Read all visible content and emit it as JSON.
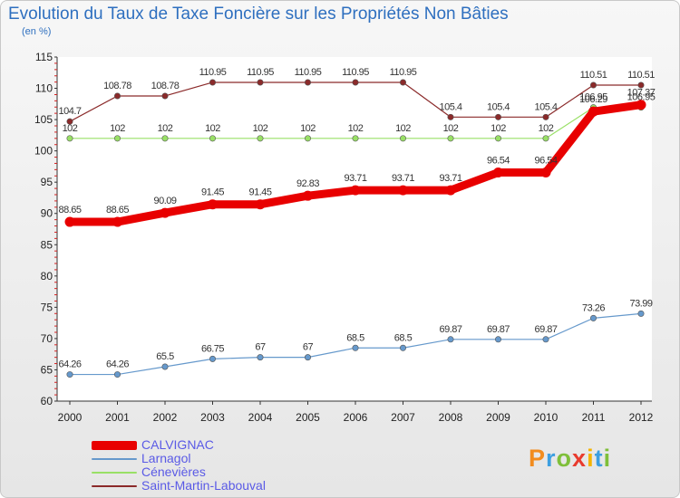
{
  "chart_data": {
    "type": "line",
    "title": "Evolution du Taux de Taxe Foncière sur les Propriétés Non Bâties",
    "subtitle": "(en %)",
    "x": [
      "2000",
      "2001",
      "2002",
      "2003",
      "2004",
      "2005",
      "2006",
      "2007",
      "2008",
      "2009",
      "2010",
      "2011",
      "2012"
    ],
    "ylim": [
      60,
      115
    ],
    "yticks": [
      60,
      65,
      70,
      75,
      80,
      85,
      90,
      95,
      100,
      105,
      110,
      115
    ],
    "grid": false,
    "legend_position": "bottom-left",
    "series": [
      {
        "name": "CALVIGNAC",
        "color": "#e80000",
        "values": [
          88.65,
          88.65,
          90.09,
          91.45,
          91.45,
          92.83,
          93.71,
          93.71,
          93.71,
          96.54,
          96.54,
          106.29,
          107.37
        ],
        "labels": [
          "88.65",
          "88.65",
          "90.09",
          "91.45",
          "91.45",
          "92.83",
          "93.71",
          "93.71",
          "93.71",
          "96.54",
          "96.54",
          "106.29",
          "107.37"
        ]
      },
      {
        "name": "Larnagol",
        "color": "#6699cc",
        "values": [
          64.26,
          64.26,
          65.5,
          66.75,
          67,
          67,
          68.5,
          68.5,
          69.87,
          69.87,
          69.87,
          73.26,
          73.99
        ],
        "labels": [
          "64.26",
          "64.26",
          "65.5",
          "66.75",
          "67",
          "67",
          "68.5",
          "68.5",
          "69.87",
          "69.87",
          "69.87",
          "73.26",
          "73.99"
        ]
      },
      {
        "name": "Cénevières",
        "color": "#99e066",
        "values": [
          102,
          102,
          102,
          102,
          102,
          102,
          102,
          102,
          102,
          102,
          102,
          106.95,
          106.95
        ],
        "labels": [
          "102",
          "102",
          "102",
          "102",
          "102",
          "102",
          "102",
          "102",
          "102",
          "102",
          "102",
          "106.95",
          "106.95"
        ]
      },
      {
        "name": "Saint-Martin-Labouval",
        "color": "#8b2a2a",
        "values": [
          104.7,
          108.78,
          108.78,
          110.95,
          110.95,
          110.95,
          110.95,
          110.95,
          105.4,
          105.4,
          105.4,
          110.51,
          110.51
        ],
        "labels": [
          "104.7",
          "108.78",
          "108.78",
          "110.95",
          "110.95",
          "110.95",
          "110.95",
          "110.95",
          "105.4",
          "105.4",
          "105.4",
          "110.51",
          "110.51"
        ]
      }
    ]
  },
  "brand": {
    "logo_text": "Proxiti"
  }
}
